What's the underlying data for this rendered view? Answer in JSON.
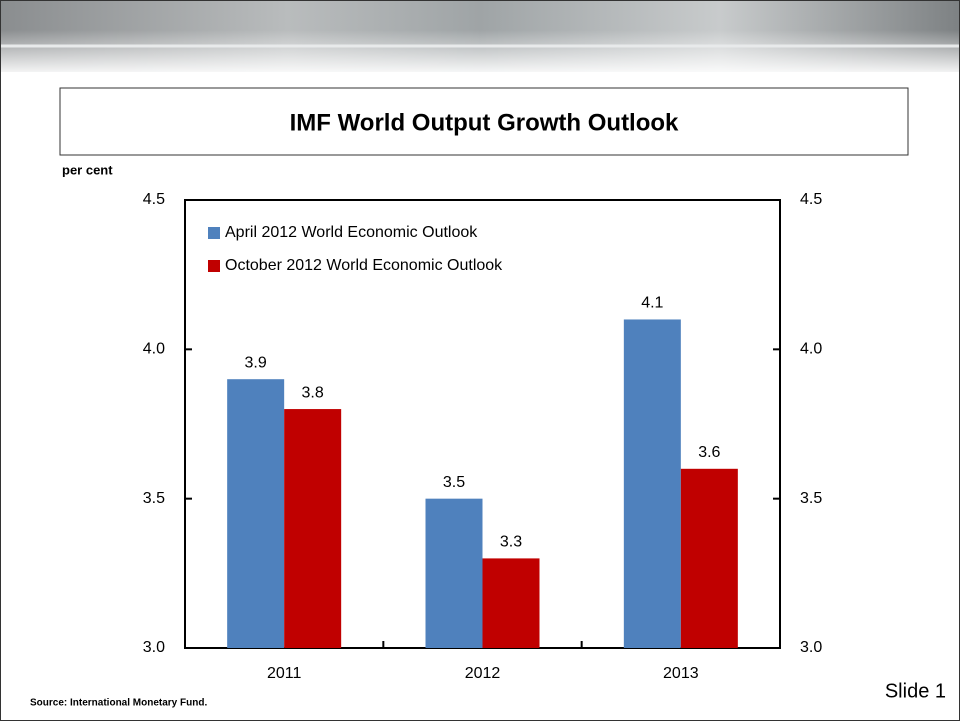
{
  "chart_data": {
    "type": "bar",
    "title": "IMF World Output Growth Outlook",
    "y_label": "per cent",
    "categories": [
      "2011",
      "2012",
      "2013"
    ],
    "series": [
      {
        "name": "April 2012 World Economic Outlook",
        "color": "#4f81bd",
        "values": [
          3.9,
          3.5,
          4.1
        ]
      },
      {
        "name": "October 2012 World Economic Outlook",
        "color": "#c00000",
        "values": [
          3.8,
          3.3,
          3.6
        ]
      }
    ],
    "ylim": [
      3.0,
      4.5
    ],
    "yticks": [
      {
        "value": 3.0,
        "label": "3.0"
      },
      3.5,
      {
        "value": 4.0,
        "label": "4.0"
      },
      4.5
    ],
    "y2lim": [
      3.0,
      4.5
    ],
    "y2ticks": [
      {
        "value": 3.0,
        "label": "3.0"
      },
      3.5,
      {
        "value": 4.0,
        "label": "4.0"
      },
      4.5
    ],
    "grid": false,
    "legend": "top-left",
    "source": "Source:  International Monetary Fund.",
    "slide_label": "Slide 1"
  }
}
